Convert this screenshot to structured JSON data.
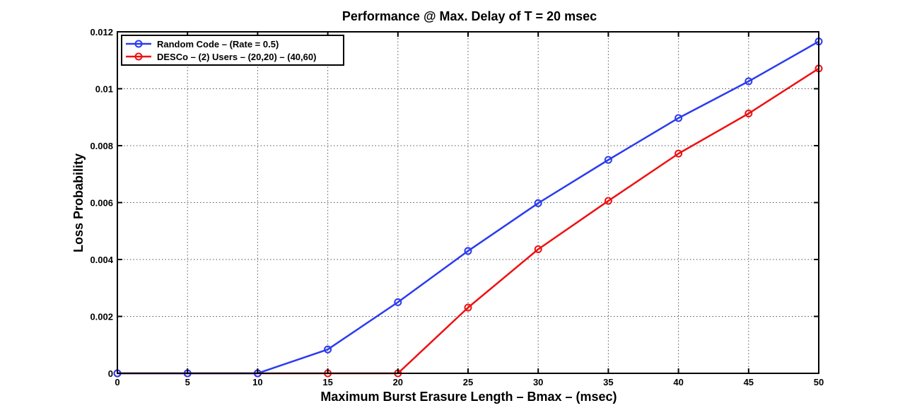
{
  "chart_data": {
    "type": "line",
    "title": "Performance @ Max. Delay of T = 20 msec",
    "xlabel": "Maximum Burst Erasure Length – Bmax – (msec)",
    "ylabel": "Loss Probability",
    "xlim": [
      0,
      50
    ],
    "ylim": [
      0,
      0.012
    ],
    "x_ticks": [
      0,
      5,
      10,
      15,
      20,
      25,
      30,
      35,
      40,
      45,
      50
    ],
    "x_tick_labels": [
      "0",
      "5",
      "10",
      "15",
      "20",
      "25",
      "30",
      "35",
      "40",
      "45",
      "50"
    ],
    "y_ticks": [
      0,
      0.002,
      0.004,
      0.006,
      0.008,
      0.01,
      0.012
    ],
    "y_tick_labels": [
      "0",
      "0.002",
      "0.004",
      "0.006",
      "0.008",
      "0.01",
      "0.012"
    ],
    "grid": true,
    "legend_position": "top-left",
    "x": [
      0,
      5,
      10,
      15,
      20,
      25,
      30,
      35,
      40,
      45,
      50
    ],
    "series": [
      {
        "name": "Random Code – (Rate = 0.5)",
        "color": "#2b3bef",
        "marker": "circle",
        "values": [
          0,
          0,
          0,
          0.00084,
          0.0025,
          0.0043,
          0.00598,
          0.0075,
          0.00897,
          0.01026,
          0.01166
        ]
      },
      {
        "name": "DESCo – (2) Users – (20,20) – (40,60)",
        "color": "#ee1111",
        "marker": "circle",
        "values": [
          0,
          0,
          0,
          0,
          0,
          0.00231,
          0.00436,
          0.00606,
          0.00772,
          0.00913,
          0.01071
        ]
      }
    ]
  }
}
